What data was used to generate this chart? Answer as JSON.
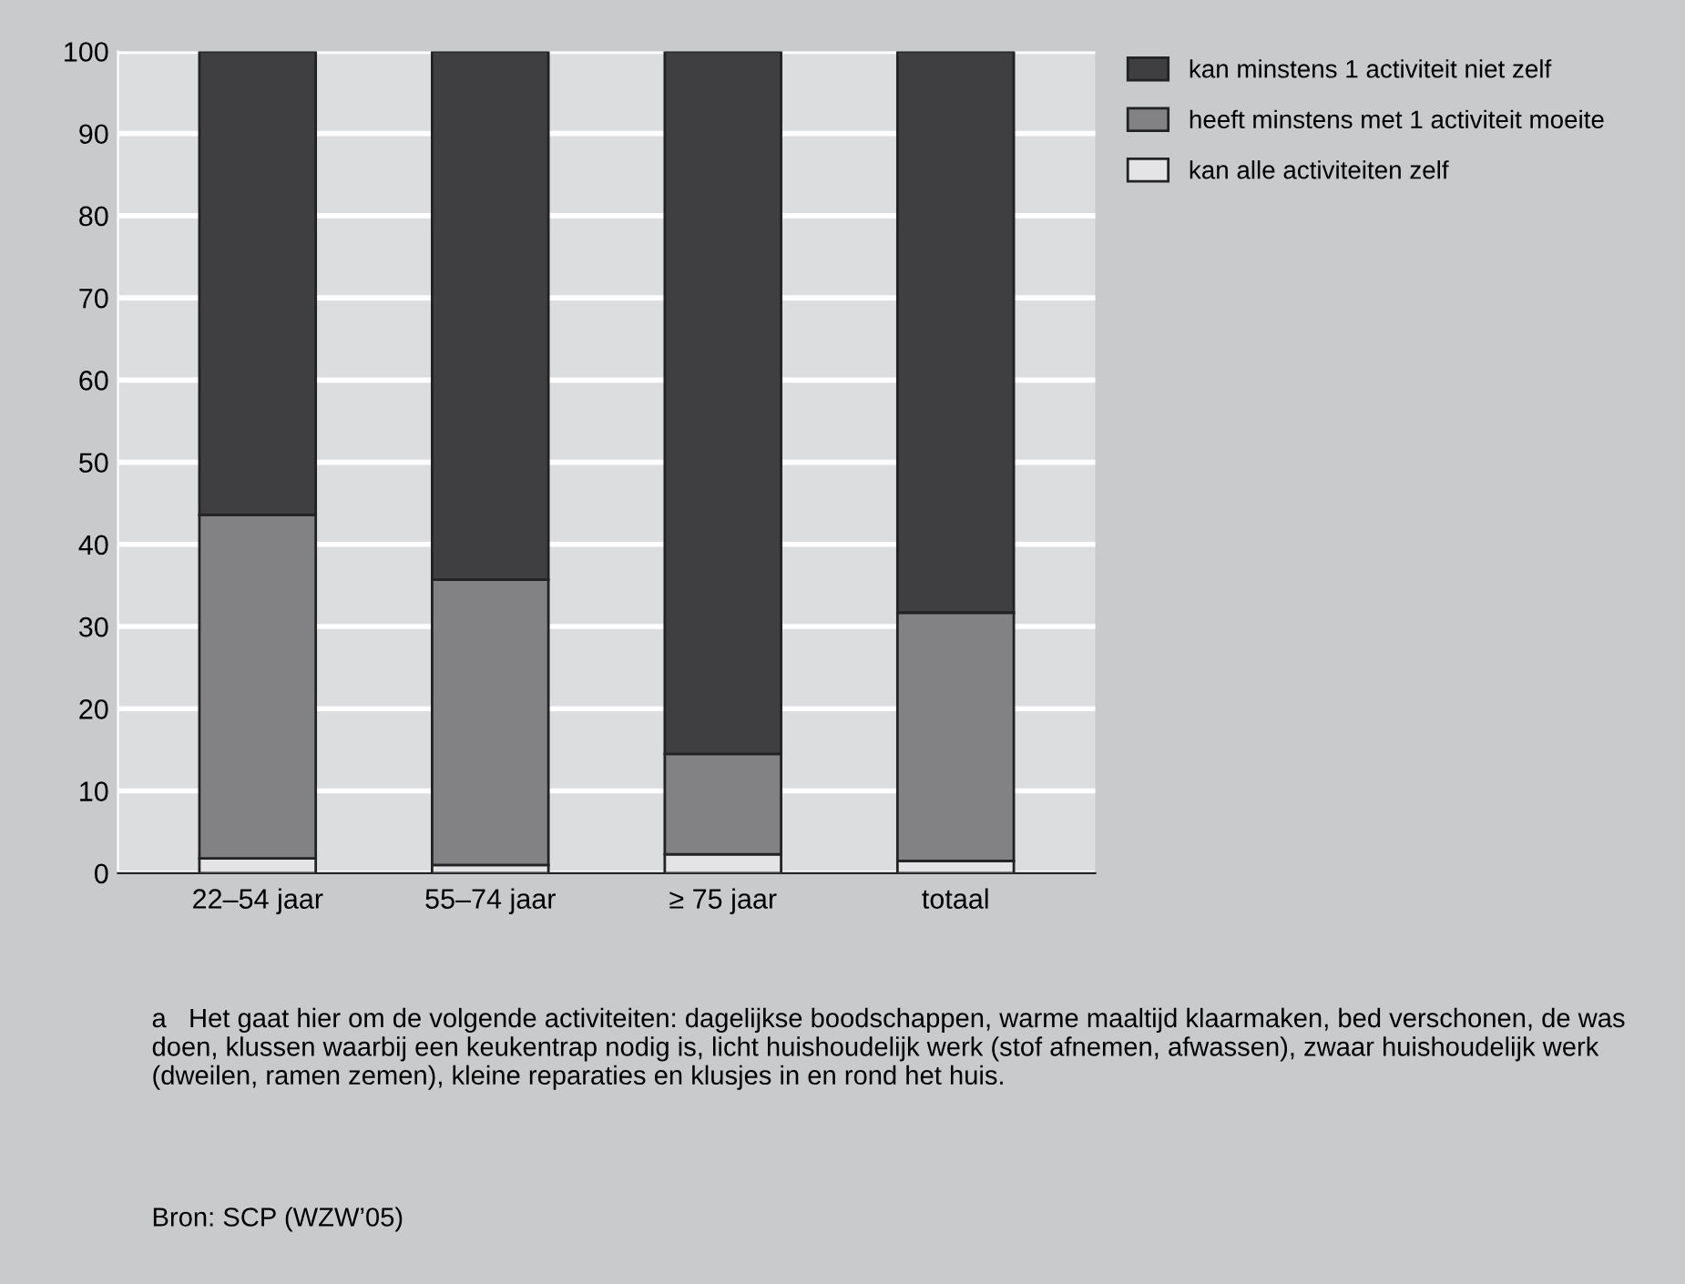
{
  "chart_data": {
    "type": "bar",
    "stacked": true,
    "categories": [
      "22–54 jaar",
      "55–74 jaar",
      "≥ 75 jaar",
      "totaal"
    ],
    "series": [
      {
        "name": "kan alle activiteiten zelf",
        "color": "#e4e4e6",
        "values": [
          1.8,
          1.0,
          2.3,
          1.5
        ]
      },
      {
        "name": "heeft minstens met 1 activiteit moeite",
        "color": "#828284",
        "values": [
          41.8,
          34.7,
          12.2,
          30.2
        ]
      },
      {
        "name": "kan minstens 1 activiteit niet zelf",
        "color": "#3f3f41",
        "values": [
          56.4,
          64.3,
          85.5,
          68.3
        ]
      }
    ],
    "ylim": [
      0,
      100
    ],
    "yticks": [
      0,
      10,
      20,
      30,
      40,
      50,
      60,
      70,
      80,
      90,
      100
    ],
    "grid": "y",
    "legend": "top right",
    "annotations": [
      "a   Het gaat hier om de volgende activiteiten: dagelijkse boodschappen, warme maaltijd klaarmaken, bed verschonen, de was doen, klussen waarbij een keukentrap nodig is, licht huishoudelijk werk (stof afnemen, afwassen), zwaar huishoudelijk werk (dweilen, ramen zemen), kleine reparaties en klusjes in en rond het huis.",
      "Bron: SCP (WZW’05)"
    ]
  }
}
